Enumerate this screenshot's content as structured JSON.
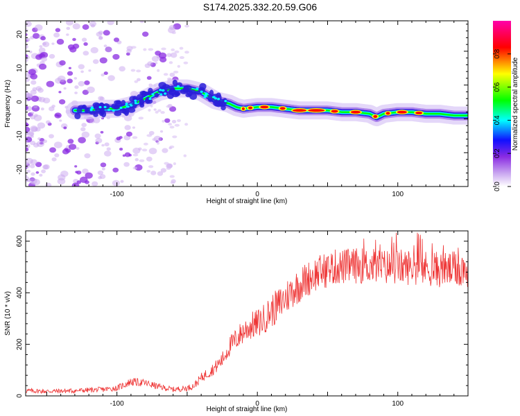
{
  "title": "S174.2025.332.20.59.G06",
  "chart_data": [
    {
      "type": "heatmap",
      "title": "S174.2025.332.20.59.G06",
      "xlabel": "Height of straight line (km)",
      "ylabel": "Frequency (Hz)",
      "xlim": [
        -165,
        150
      ],
      "ylim": [
        -25,
        24
      ],
      "xticks": [
        -100,
        0,
        100
      ],
      "yticks": [
        -20,
        -10,
        0,
        10,
        20
      ],
      "ridge": {
        "x": [
          -130,
          -120,
          -110,
          -100,
          -90,
          -80,
          -70,
          -60,
          -50,
          -40,
          -30,
          -20,
          -15,
          -10,
          0,
          10,
          20,
          30,
          40,
          50,
          60,
          70,
          80,
          85,
          90,
          100,
          110,
          120,
          130,
          140,
          150
        ],
        "y": [
          -2.5,
          -2.5,
          -2.0,
          -2.0,
          -1.0,
          1.0,
          3.0,
          4.0,
          4.0,
          3.0,
          0.5,
          -0.5,
          -1.5,
          -2.0,
          -1.5,
          -1.5,
          -2.0,
          -2.5,
          -2.5,
          -2.5,
          -3.0,
          -3.0,
          -3.5,
          -4.5,
          -3.5,
          -3.0,
          -3.0,
          -3.5,
          -3.5,
          -4.0,
          -4.0
        ]
      },
      "colorbar": {
        "label": "Normalized spectral amplitude",
        "ticks": [
          "0.0",
          "0.2",
          "0.4",
          "0.6",
          "0.8"
        ],
        "range": [
          0,
          1
        ]
      },
      "colors": {
        "purple": "#8a2be2",
        "blue": "#0040ff",
        "cyan": "#00ffff",
        "green": "#00ff00",
        "yellow": "#ffff00",
        "red": "#ff0000",
        "magenta": "#ff00aa"
      }
    },
    {
      "type": "line",
      "xlabel": "Height of straight line (km)",
      "ylabel": "SNR (10 * v/v)",
      "xlim": [
        -165,
        150
      ],
      "ylim": [
        0,
        640
      ],
      "xticks": [
        -100,
        0,
        100
      ],
      "yticks": [
        0,
        200,
        400,
        600
      ],
      "series": [
        {
          "name": "SNR",
          "color": "#ee3333",
          "x": [
            -165,
            -150,
            -130,
            -110,
            -100,
            -90,
            -80,
            -70,
            -60,
            -50,
            -45,
            -40,
            -35,
            -30,
            -25,
            -20,
            -15,
            -10,
            -5,
            0,
            5,
            10,
            15,
            20,
            25,
            30,
            35,
            40,
            45,
            50,
            55,
            60,
            70,
            80,
            90,
            100,
            110,
            120,
            130,
            140,
            150
          ],
          "values": [
            20,
            18,
            20,
            25,
            30,
            55,
            50,
            35,
            25,
            30,
            40,
            70,
            90,
            110,
            140,
            190,
            220,
            250,
            270,
            280,
            300,
            330,
            350,
            380,
            410,
            430,
            450,
            470,
            480,
            490,
            500,
            500,
            505,
            505,
            500,
            500,
            500,
            495,
            490,
            490,
            490
          ]
        }
      ]
    }
  ]
}
